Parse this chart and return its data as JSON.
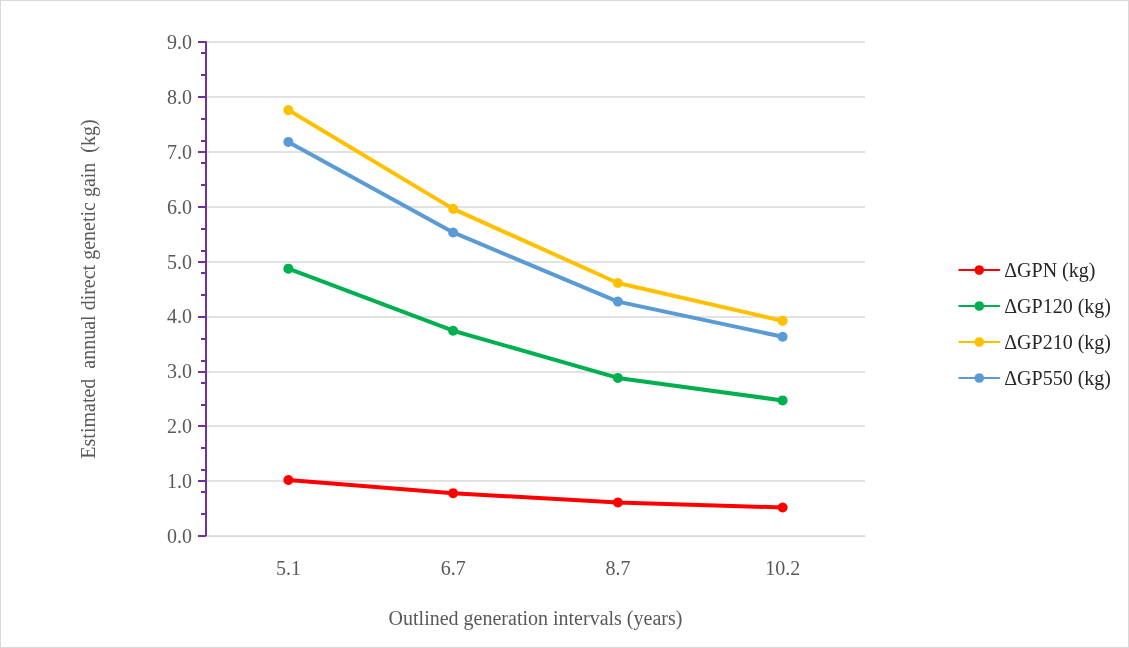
{
  "chart_data": {
    "type": "line",
    "xlabel": "Outlined generation intervals (years)",
    "ylabel": "Estimated  annual direct genetic gain  (kg)",
    "categories": [
      "5.1",
      "6.7",
      "8.7",
      "10.2"
    ],
    "series": [
      {
        "name": "ΔGPN (kg)",
        "color": "#ff0000",
        "values": [
          1.02,
          0.78,
          0.61,
          0.52
        ]
      },
      {
        "name": "ΔGP120 (kg)",
        "color": "#00b050",
        "values": [
          4.87,
          3.74,
          2.88,
          2.47
        ]
      },
      {
        "name": "ΔGP210 (kg)",
        "color": "#ffc000",
        "values": [
          7.76,
          5.96,
          4.61,
          3.92
        ]
      },
      {
        "name": "ΔGP550 (kg)",
        "color": "#5b9bd5",
        "values": [
          7.18,
          5.53,
          4.27,
          3.63
        ]
      }
    ],
    "ylim": [
      0,
      9
    ],
    "yticks": [
      {
        "value": 0,
        "label": "0.0"
      },
      {
        "value": 1,
        "label": "1.0"
      },
      {
        "value": 2,
        "label": "2.0"
      },
      {
        "value": 3,
        "label": "3.0"
      },
      {
        "value": 4,
        "label": "4.0"
      },
      {
        "value": 5,
        "label": "5.0"
      },
      {
        "value": 6,
        "label": "6.0"
      },
      {
        "value": 7,
        "label": "7.0"
      },
      {
        "value": 8,
        "label": "8.0"
      },
      {
        "value": 9,
        "label": "9.0"
      }
    ],
    "grid": "y",
    "legend": "right",
    "marker": "circle",
    "line_style": "solid"
  }
}
